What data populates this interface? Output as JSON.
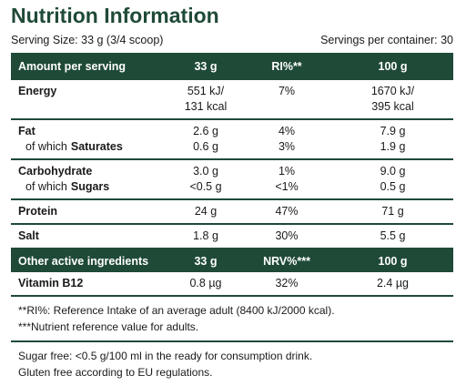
{
  "header": {
    "title": "Nutrition Information",
    "serving_size": "Serving Size: 33 g (3/4 scoop)",
    "servings_per_container": "Servings per container: 30"
  },
  "table": {
    "header": [
      "Amount per serving",
      "33 g",
      "RI%**",
      "100 g"
    ],
    "groups": [
      [
        {
          "label": [
            {
              "text": "Energy",
              "bold": true
            }
          ],
          "cells": [
            [
              "551 kJ/",
              "131 kcal"
            ],
            [
              "7%"
            ],
            [
              "1670 kJ/",
              "395 kcal"
            ]
          ]
        }
      ],
      [
        {
          "label": [
            {
              "text": "Fat",
              "bold": true
            }
          ],
          "cells": [
            [
              "2.6 g"
            ],
            [
              "4%"
            ],
            [
              "7.9 g"
            ]
          ]
        },
        {
          "label": [
            {
              "text": "of which",
              "bold": false
            },
            {
              "text": "Saturates",
              "bold": true
            }
          ],
          "sub": true,
          "cells": [
            [
              "0.6 g"
            ],
            [
              "3%"
            ],
            [
              "1.9 g"
            ]
          ]
        }
      ],
      [
        {
          "label": [
            {
              "text": "Carbohydrate",
              "bold": true
            }
          ],
          "cells": [
            [
              "3.0 g"
            ],
            [
              "1%"
            ],
            [
              "9.0 g"
            ]
          ]
        },
        {
          "label": [
            {
              "text": "of which",
              "bold": false
            },
            {
              "text": "Sugars",
              "bold": true
            }
          ],
          "sub": true,
          "cells": [
            [
              "<0.5 g"
            ],
            [
              "<1%"
            ],
            [
              "0.5 g"
            ]
          ]
        }
      ],
      [
        {
          "label": [
            {
              "text": "Protein",
              "bold": true
            }
          ],
          "cells": [
            [
              "24 g"
            ],
            [
              "47%"
            ],
            [
              "71 g"
            ]
          ]
        }
      ],
      [
        {
          "label": [
            {
              "text": "Salt",
              "bold": true
            }
          ],
          "cells": [
            [
              "1.8 g"
            ],
            [
              "30%"
            ],
            [
              "5.5 g"
            ]
          ]
        }
      ]
    ],
    "header2": [
      "Other active ingredients",
      "33 g",
      "NRV%***",
      "100 g"
    ],
    "groups2": [
      [
        {
          "label": [
            {
              "text": "Vitamin B12",
              "bold": true
            }
          ],
          "cells": [
            [
              "0.8 µg"
            ],
            [
              "32%"
            ],
            [
              "2.4 µg"
            ]
          ]
        }
      ]
    ]
  },
  "footnotes": [
    "**RI%: Reference Intake of an average adult (8400 kJ/2000 kcal).",
    "***Nutrient reference value for adults."
  ],
  "notes": [
    "Sugar free: <0.5 g/100 ml in the ready for consumption drink.",
    "Gluten free according to EU regulations."
  ]
}
